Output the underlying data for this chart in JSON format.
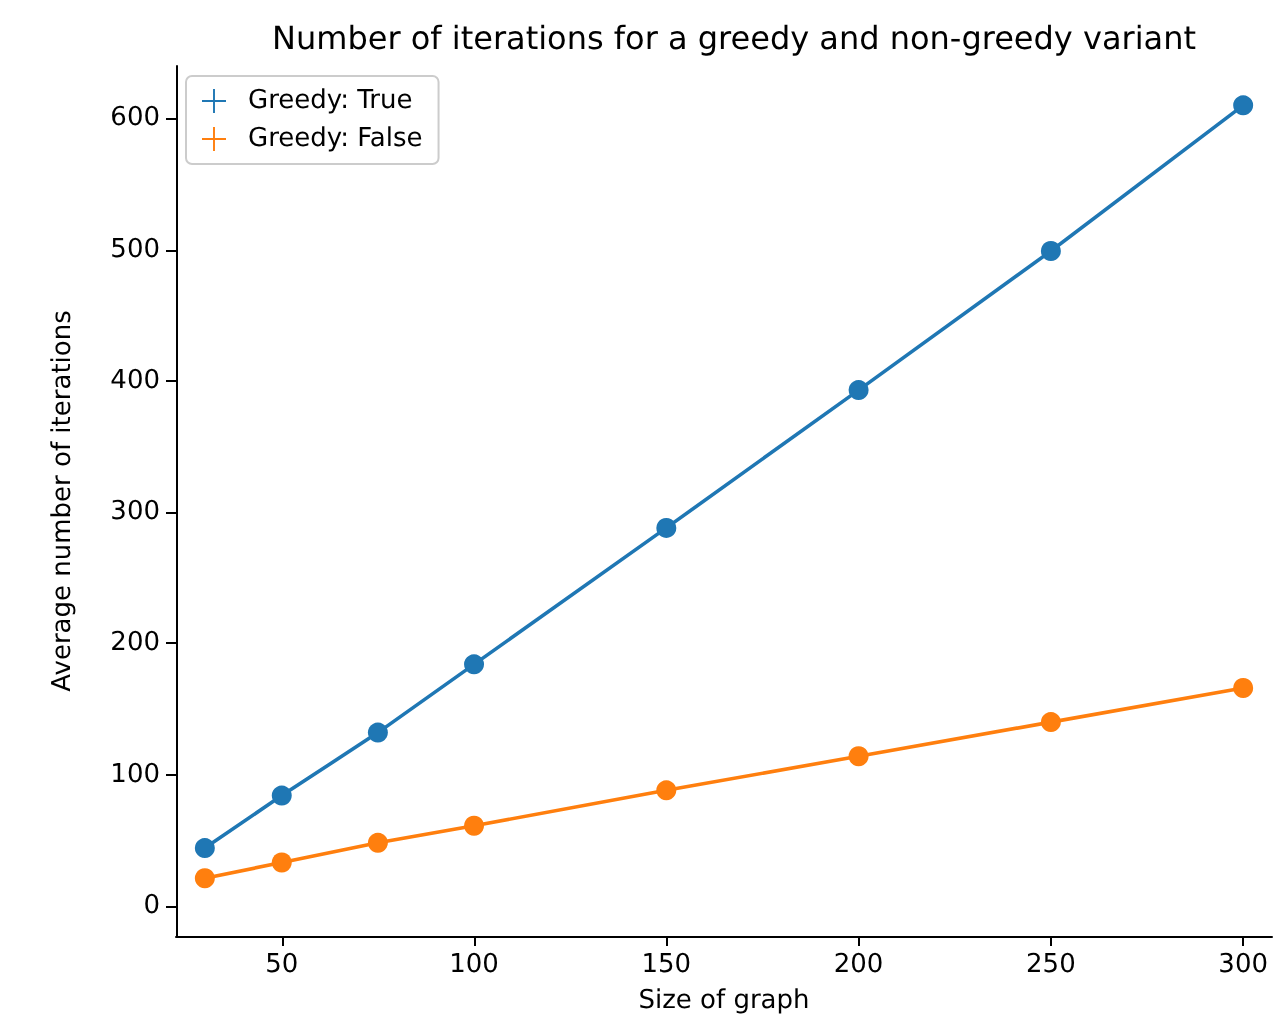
{
  "chart_data": {
    "type": "line",
    "title": "Number of iterations for a greedy and non-greedy variant",
    "xlabel": "Size of graph",
    "ylabel": "Average number of iterations",
    "x": [
      30,
      50,
      75,
      100,
      150,
      200,
      250,
      300
    ],
    "series": [
      {
        "name": "Greedy: True",
        "color": "#1f77b4",
        "values": [
          44,
          84,
          132,
          184,
          288,
          393,
          499,
          610
        ]
      },
      {
        "name": "Greedy: False",
        "color": "#ff7f0e",
        "values": [
          21,
          33,
          48,
          61,
          88,
          114,
          140,
          166
        ]
      }
    ],
    "xlim": [
      22.5,
      307.5
    ],
    "ylim": [
      -23,
      640
    ],
    "xticks": [
      50,
      100,
      150,
      200,
      250,
      300
    ],
    "yticks": [
      0,
      100,
      200,
      300,
      400,
      500,
      600
    ],
    "grid": false,
    "legend": "top left",
    "marker": "circle",
    "line_style": "solid"
  }
}
